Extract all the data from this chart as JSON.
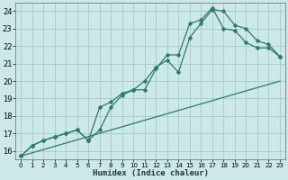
{
  "background_color": "#cce8e8",
  "grid_color": "#aacfcf",
  "line_color": "#2d7a6a",
  "xlabel": "Humidex (Indice chaleur)",
  "xlim": [
    -0.5,
    23.5
  ],
  "ylim": [
    15.5,
    24.5
  ],
  "yticks": [
    16,
    17,
    18,
    19,
    20,
    21,
    22,
    23,
    24
  ],
  "xticks": [
    0,
    1,
    2,
    3,
    4,
    5,
    6,
    7,
    8,
    9,
    10,
    11,
    12,
    13,
    14,
    15,
    16,
    17,
    18,
    19,
    20,
    21,
    22,
    23
  ],
  "line1_x": [
    0,
    1,
    2,
    3,
    4,
    5,
    6,
    7,
    8,
    9,
    10,
    11,
    12,
    13,
    14,
    15,
    16,
    17,
    18,
    19,
    20,
    21,
    22,
    23
  ],
  "line1_y": [
    15.7,
    16.3,
    16.6,
    16.8,
    17.0,
    17.2,
    16.6,
    17.2,
    18.5,
    19.2,
    19.5,
    20.0,
    20.8,
    21.2,
    20.5,
    22.5,
    23.3,
    24.1,
    24.0,
    23.2,
    23.0,
    22.3,
    22.1,
    21.4
  ],
  "line2_x": [
    0,
    1,
    2,
    3,
    4,
    5,
    6,
    7,
    8,
    9,
    10,
    11,
    12,
    13,
    14,
    15,
    16,
    17,
    18,
    19,
    20,
    21,
    22,
    23
  ],
  "line2_y": [
    15.7,
    16.3,
    16.6,
    16.8,
    17.0,
    17.2,
    16.6,
    18.5,
    18.8,
    19.3,
    19.5,
    19.5,
    20.7,
    21.5,
    21.5,
    23.3,
    23.5,
    24.2,
    23.0,
    22.9,
    22.2,
    21.9,
    21.9,
    21.4
  ],
  "line3_x": [
    0,
    23
  ],
  "line3_y": [
    15.7,
    20.0
  ],
  "marker_x": [
    0,
    1,
    2,
    3,
    4,
    5,
    6,
    7,
    8,
    9,
    10,
    11,
    12,
    13,
    14,
    15,
    16,
    17,
    18,
    19,
    20,
    21,
    22,
    23
  ],
  "marker2_x": [
    0,
    6,
    7,
    8,
    9,
    10,
    11,
    12,
    13,
    14,
    15,
    16,
    17,
    19,
    20,
    21,
    22,
    23
  ]
}
